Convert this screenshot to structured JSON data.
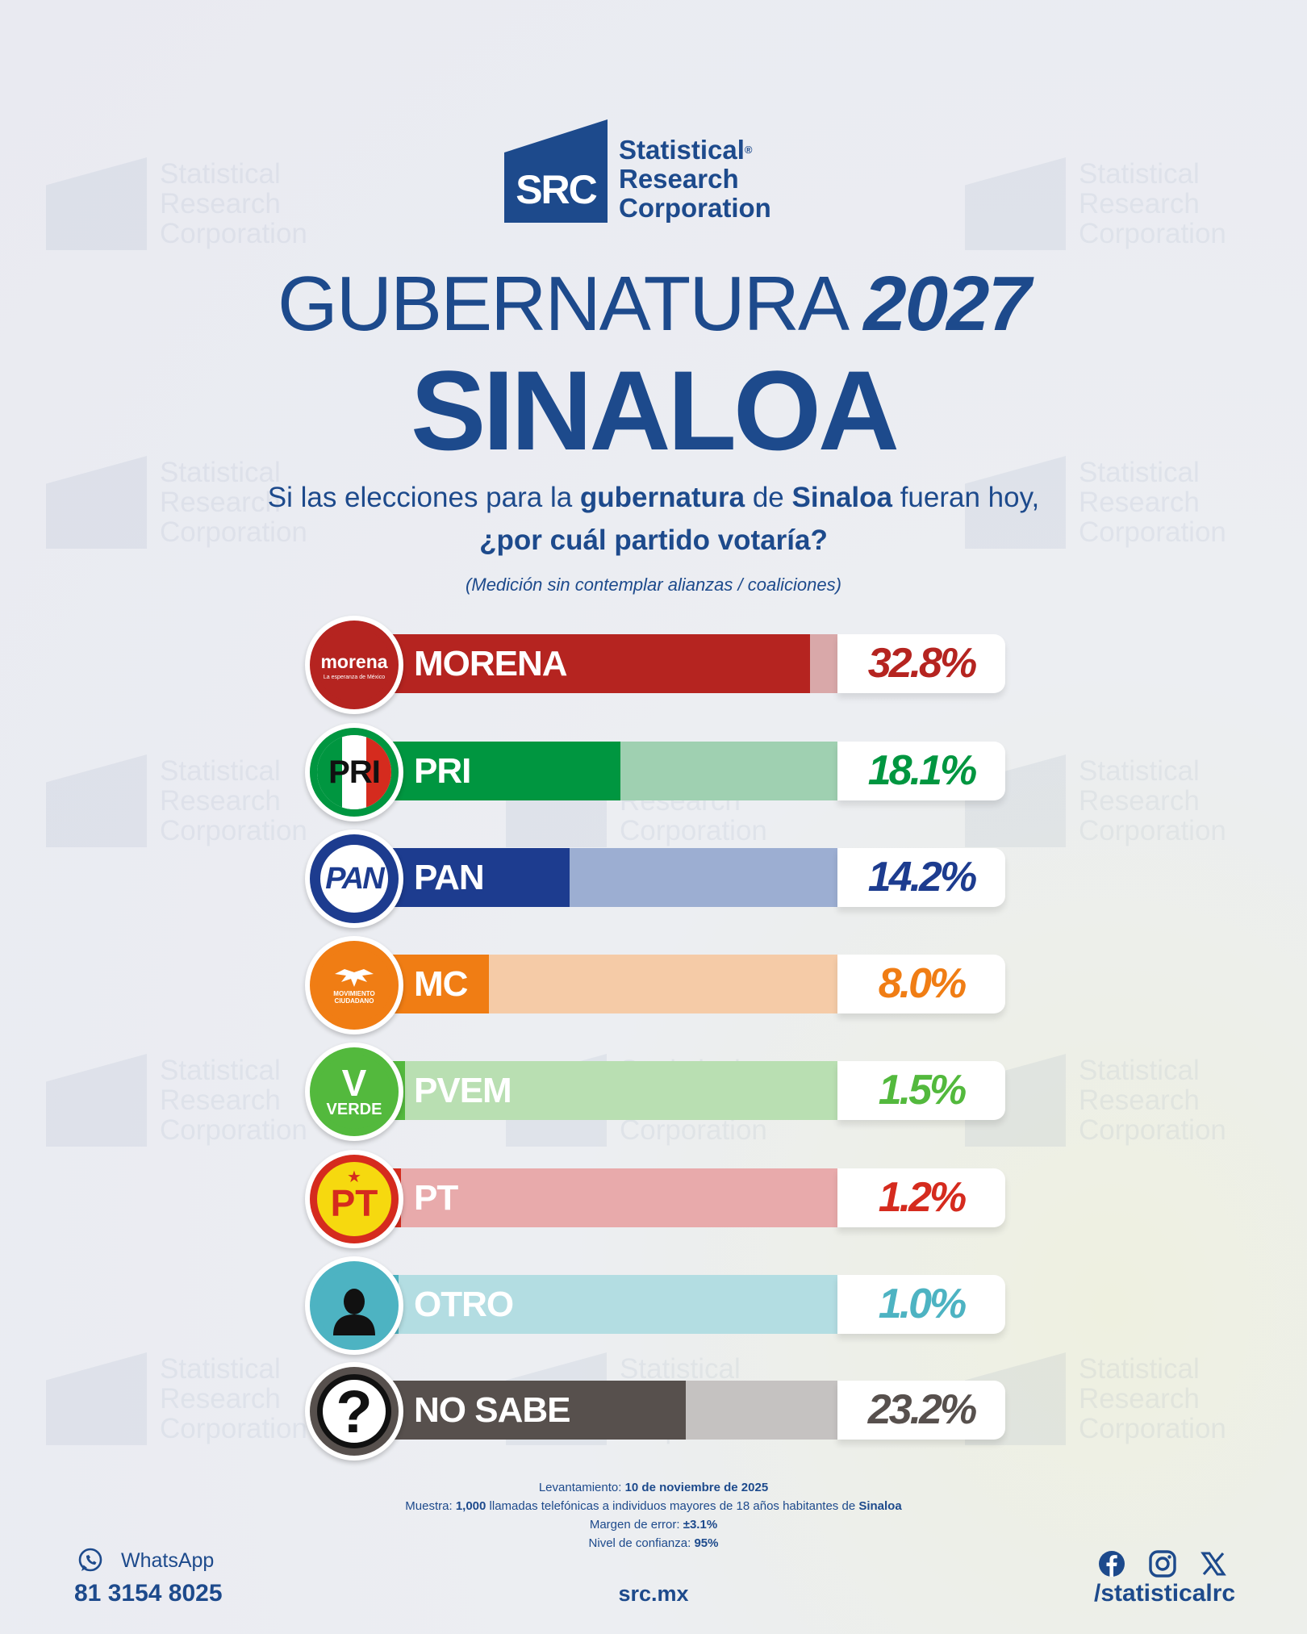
{
  "brand": {
    "logo_mark": "SRC",
    "name_lines": [
      "Statistical",
      "Research",
      "Corporation"
    ],
    "registered": "®",
    "colors": {
      "primary": "#1d4a8c"
    }
  },
  "title": {
    "main": "GUBERNATURA",
    "year": "2027",
    "state": "SINALOA"
  },
  "question": {
    "pre": "Si las elecciones para la ",
    "bold1": "gubernatura",
    "mid": " de ",
    "bold2": "Sinaloa",
    "post": " fueran hoy,",
    "line2": "¿por cuál partido votaría?",
    "note": "(Medición sin contemplar alianzas / coaliciones)"
  },
  "chart_data": {
    "type": "bar",
    "orientation": "horizontal",
    "categories": [
      "MORENA",
      "PRI",
      "PAN",
      "MC",
      "PVEM",
      "PT",
      "OTRO",
      "NO SABE"
    ],
    "values": [
      32.8,
      18.1,
      14.2,
      8.0,
      1.5,
      1.2,
      1.0,
      23.2
    ],
    "value_labels": [
      "32.8%",
      "18.1%",
      "14.2%",
      "8.0%",
      "1.5%",
      "1.2%",
      "1.0%",
      "23.2%"
    ],
    "unit": "%",
    "xlim": [
      0,
      40
    ],
    "colors": [
      "#b52420",
      "#009640",
      "#1d3c8f",
      "#f07d14",
      "#53b93d",
      "#d52b1e",
      "#4db3c2",
      "#57504d"
    ],
    "track_colors": [
      "#d9a8a9",
      "#9fd0b1",
      "#9caed2",
      "#f5cba7",
      "#b9dfb2",
      "#e8aaab",
      "#b3dde2",
      "#c5c2c1"
    ],
    "logos": [
      {
        "word": "morena",
        "sub": "La esperanza de México",
        "icon": "morena-logo-icon"
      },
      {
        "word": "PRI",
        "icon": "pri-logo-icon"
      },
      {
        "word": "PAN",
        "icon": "pan-logo-icon"
      },
      {
        "word": "MOVIMIENTO CIUDADANO",
        "icon": "mc-eagle-logo-icon"
      },
      {
        "word": "VERDE",
        "icon": "pvem-toucan-logo-icon"
      },
      {
        "word": "PT",
        "icon": "pt-star-logo-icon"
      },
      {
        "word": "",
        "icon": "person-icon"
      },
      {
        "word": "?",
        "icon": "question-mark-icon"
      }
    ]
  },
  "footer": {
    "levantamiento_label": "Levantamiento: ",
    "levantamiento_value": "10 de noviembre de 2025",
    "muestra_label": "Muestra: ",
    "muestra_value": "1,000",
    "muestra_text": " llamadas telefónicas a individuos mayores de 18 años habitantes de ",
    "muestra_place": "Sinaloa",
    "margen_label": "Margen de error: ",
    "margen_value": "±3.1%",
    "nivel_label": "Nivel de confianza: ",
    "nivel_value": "95%",
    "whatsapp_label": "WhatsApp",
    "whatsapp_number": "81 3154 8025",
    "site": "src.mx",
    "handle": "/statisticalrc",
    "social_icons": [
      "facebook-icon",
      "instagram-icon",
      "x-icon"
    ]
  },
  "watermark": {
    "mark": "SRC",
    "lines": [
      "Statistical",
      "Research",
      "Corporation"
    ]
  }
}
